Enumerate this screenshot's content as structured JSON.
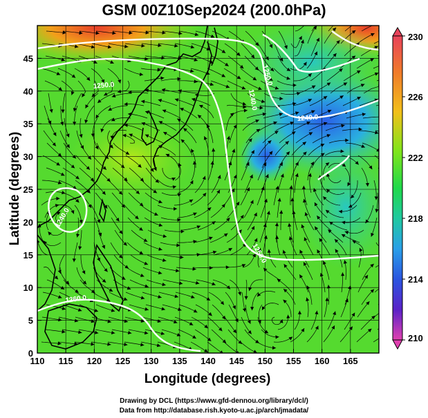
{
  "title": "GSM 00Z10Sep2024 (200.0hPa)",
  "axes": {
    "xlabel": "Longitude (degrees)",
    "ylabel": "Latitude  (degrees)",
    "x_ticks": [
      "110",
      "115",
      "120",
      "125",
      "130",
      "135",
      "140",
      "145",
      "150",
      "155",
      "160",
      "165"
    ],
    "y_ticks": [
      "0",
      "5",
      "10",
      "15",
      "20",
      "25",
      "30",
      "35",
      "40",
      "45"
    ]
  },
  "colorbar": {
    "labels": [
      "230",
      "226",
      "222",
      "218",
      "214",
      "210"
    ],
    "colors": [
      "#e8425a",
      "#f07b2a",
      "#f2c01a",
      "#7fe51a",
      "#1fd94a",
      "#1fc9a0",
      "#2aa0e8",
      "#2a55e0",
      "#5a22c8",
      "#b020c0",
      "#e040b0"
    ]
  },
  "contours": {
    "labels": [
      "1250.0",
      "1240.0",
      "1250.0",
      "1260.0",
      "1240.0",
      "1250.0",
      "1240.0"
    ]
  },
  "credits": {
    "line1": "Drawing by DCL (https://www.gfd-dennou.org/library/dcl/)",
    "line2": "Data from http://database.rish.kyoto-u.ac.jp/arch/jmadata/"
  },
  "chart_data": {
    "type": "heatmap",
    "title": "GSM 00Z10Sep2024 (200.0hPa)",
    "xlabel": "Longitude (degrees)",
    "ylabel": "Latitude  (degrees)",
    "xlim": [
      110,
      170
    ],
    "ylim": [
      0,
      50
    ],
    "colorbar_range": [
      210,
      230
    ],
    "colorbar_ticks": [
      210,
      214,
      218,
      222,
      226,
      230
    ],
    "grid": true,
    "field_description": "temperature-like shading with streamlines and white geopotential contours",
    "regions": [
      {
        "lon": 120,
        "lat": 47,
        "value": 229
      },
      {
        "lon": 168,
        "lat": 49,
        "value": 229
      },
      {
        "lon": 160,
        "lat": 38,
        "value": 217
      },
      {
        "lon": 150,
        "lat": 32,
        "value": 219
      },
      {
        "lon": 125,
        "lat": 30,
        "value": 223
      },
      {
        "lon": 140,
        "lat": 10,
        "value": 222
      }
    ]
  }
}
